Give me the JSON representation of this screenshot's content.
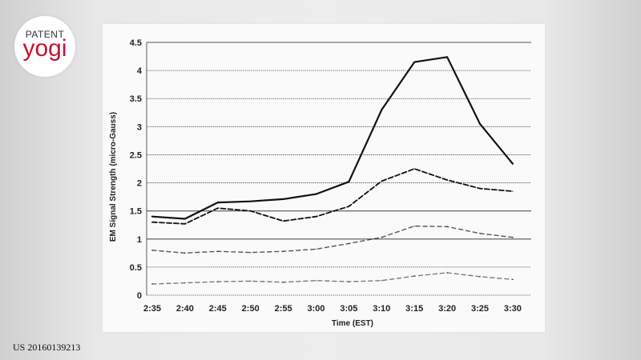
{
  "logo": {
    "top": "PATENT",
    "bottom": "yogi"
  },
  "patent_number": "US 20160139213",
  "colors": {
    "logo_red": "#c8102e",
    "line": "#111111",
    "grid": "#555555"
  },
  "chart_data": {
    "type": "line",
    "title": "",
    "xlabel": "Time (EST)",
    "ylabel": "EM Signal Strength (micro-Gauss)",
    "categories": [
      "2:35",
      "2:40",
      "2:45",
      "2:50",
      "2:55",
      "3:00",
      "3:05",
      "3:10",
      "3:15",
      "3:20",
      "3:25",
      "3:30"
    ],
    "ylim": [
      0,
      4.5
    ],
    "yticks": [
      "0",
      "0.5",
      "1",
      "1.5",
      "2",
      "2.5",
      "3",
      "3.5",
      "4",
      "4.5"
    ],
    "grid": true,
    "legend": "none",
    "series": [
      {
        "style": "solid",
        "values": [
          1.4,
          1.36,
          1.65,
          1.67,
          1.71,
          1.8,
          2.02,
          3.3,
          4.15,
          4.24,
          3.05,
          2.34
        ]
      },
      {
        "style": "dashed",
        "values": [
          1.3,
          1.27,
          1.55,
          1.5,
          1.32,
          1.4,
          1.58,
          2.03,
          2.25,
          2.05,
          1.9,
          1.85
        ]
      },
      {
        "style": "dashed",
        "values": [
          0.8,
          0.75,
          0.78,
          0.76,
          0.78,
          0.82,
          0.92,
          1.03,
          1.23,
          1.22,
          1.1,
          1.03
        ]
      },
      {
        "style": "dashed",
        "values": [
          0.2,
          0.22,
          0.24,
          0.25,
          0.23,
          0.26,
          0.24,
          0.26,
          0.34,
          0.4,
          0.33,
          0.28
        ]
      }
    ]
  }
}
